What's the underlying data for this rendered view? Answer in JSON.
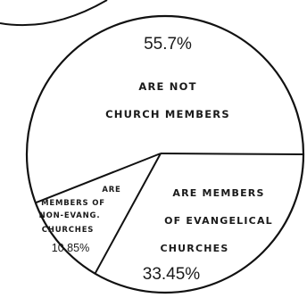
{
  "chart_data": {
    "type": "pie",
    "slices": [
      {
        "value": 55.7,
        "percent_label": "55.7%",
        "lines": [
          "ARE NOT",
          "CHURCH MEMBERS"
        ]
      },
      {
        "value": 33.45,
        "percent_label": "33.45%",
        "lines": [
          "ARE MEMBERS",
          "OF EVANGELICAL",
          "CHURCHES"
        ]
      },
      {
        "value": 10.85,
        "percent_label": "10.85%",
        "lines": [
          "ARE",
          "MEMBERS OF",
          "NON-EVANG.",
          "CHURCHES"
        ]
      }
    ],
    "colors": {
      "fill": "#ffffff",
      "stroke": "#111111",
      "text": "#1a1a1a"
    }
  }
}
